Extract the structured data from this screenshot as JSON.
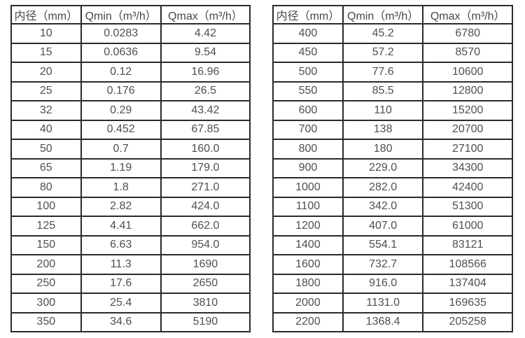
{
  "page": {
    "background": "#ffffff",
    "border_color": "#2b2b2b",
    "text_color": "#4f4f4f"
  },
  "tables": [
    {
      "name": "flow-table-small-diameters",
      "headers": [
        "内径（mm）",
        "Qmin（m³/h）",
        "Qmax（m³/h）"
      ],
      "rows": [
        [
          "10",
          "0.0283",
          "4.42"
        ],
        [
          "15",
          "0.0636",
          "9.54"
        ],
        [
          "20",
          "0.12",
          "16.96"
        ],
        [
          "25",
          "0.176",
          "26.5"
        ],
        [
          "32",
          "0.29",
          "43.42"
        ],
        [
          "40",
          "0.452",
          "67.85"
        ],
        [
          "50",
          "0.7",
          "160.0"
        ],
        [
          "65",
          "1.19",
          "179.0"
        ],
        [
          "80",
          "1.8",
          "271.0"
        ],
        [
          "100",
          "2.82",
          "424.0"
        ],
        [
          "125",
          "4.41",
          "662.0"
        ],
        [
          "150",
          "6.63",
          "954.0"
        ],
        [
          "200",
          "11.3",
          "1690"
        ],
        [
          "250",
          "17.6",
          "2650"
        ],
        [
          "300",
          "25.4",
          "3810"
        ],
        [
          "350",
          "34.6",
          "5190"
        ]
      ]
    },
    {
      "name": "flow-table-large-diameters",
      "headers": [
        "内径（mm）",
        "Qmin（m³/h）",
        "Qmax（m³/h）"
      ],
      "rows": [
        [
          "400",
          "45.2",
          "6780"
        ],
        [
          "450",
          "57.2",
          "8570"
        ],
        [
          "500",
          "77.6",
          "10600"
        ],
        [
          "550",
          "85.5",
          "12800"
        ],
        [
          "600",
          "110",
          "15200"
        ],
        [
          "700",
          "138",
          "20700"
        ],
        [
          "800",
          "180",
          "27100"
        ],
        [
          "900",
          "229.0",
          "34300"
        ],
        [
          "1000",
          "282.0",
          "42400"
        ],
        [
          "1100",
          "342.0",
          "51300"
        ],
        [
          "1200",
          "407.0",
          "61000"
        ],
        [
          "1400",
          "554.1",
          "83121"
        ],
        [
          "1600",
          "732.7",
          "108566"
        ],
        [
          "1800",
          "916.0",
          "137404"
        ],
        [
          "2000",
          "1131.0",
          "169635"
        ],
        [
          "2200",
          "1368.4",
          "205258"
        ]
      ]
    }
  ]
}
